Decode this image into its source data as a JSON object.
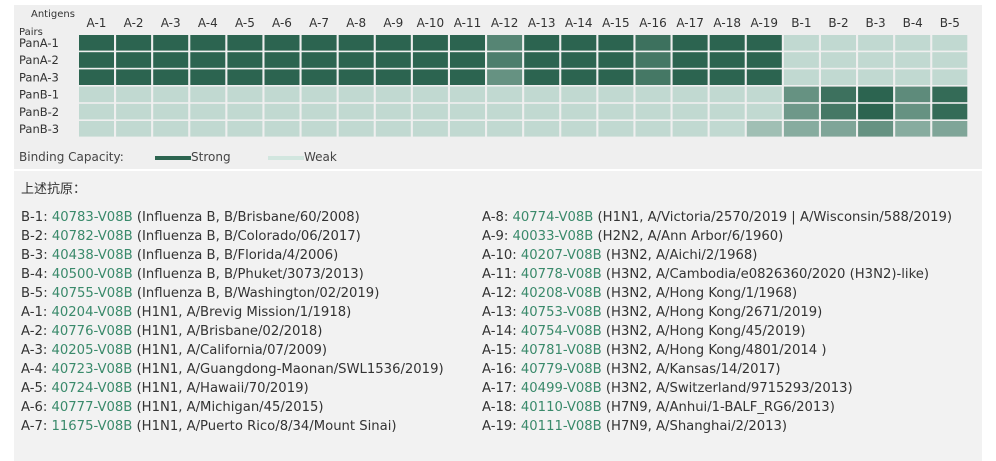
{
  "chart_data": {
    "type": "heatmap",
    "x_axis_label": "Antigens",
    "y_axis_label": "Pairs",
    "columns": [
      "A-1",
      "A-2",
      "A-3",
      "A-4",
      "A-5",
      "A-6",
      "A-7",
      "A-8",
      "A-9",
      "A-10",
      "A-11",
      "A-12",
      "A-13",
      "A-14",
      "A-15",
      "A-16",
      "A-17",
      "A-18",
      "A-19",
      "B-1",
      "B-2",
      "B-3",
      "B-4",
      "B-5"
    ],
    "rows": [
      "PanA-1",
      "PanA-2",
      "PanA-3",
      "PanB-1",
      "PanB-2",
      "PanB-3"
    ],
    "values": [
      [
        1,
        1,
        1,
        1,
        1,
        1,
        1,
        1,
        1,
        1,
        1,
        0.75,
        1,
        1,
        1,
        0.9,
        1,
        1,
        1,
        0.1,
        0.1,
        0.1,
        0.1,
        0.1
      ],
      [
        1,
        1,
        1,
        1,
        1,
        1,
        1,
        1,
        1,
        1,
        1,
        0.8,
        1,
        1,
        1,
        0.85,
        1,
        1,
        1,
        0.1,
        0.1,
        0.1,
        0.1,
        0.1
      ],
      [
        1,
        1,
        1,
        1,
        1,
        1,
        1,
        1,
        1,
        1,
        1,
        0.65,
        1,
        1,
        1,
        0.85,
        1,
        1,
        1,
        0.1,
        0.1,
        0.1,
        0.1,
        0.1
      ],
      [
        0.1,
        0.1,
        0.1,
        0.1,
        0.1,
        0.1,
        0.1,
        0.1,
        0.1,
        0.1,
        0.1,
        0.1,
        0.1,
        0.1,
        0.1,
        0.1,
        0.1,
        0.1,
        0.1,
        0.65,
        0.9,
        1,
        0.7,
        0.95
      ],
      [
        0.1,
        0.1,
        0.1,
        0.1,
        0.1,
        0.1,
        0.1,
        0.1,
        0.1,
        0.1,
        0.1,
        0.1,
        0.1,
        0.1,
        0.1,
        0.1,
        0.1,
        0.1,
        0.1,
        0.6,
        0.85,
        1,
        0.65,
        0.95
      ],
      [
        0.1,
        0.1,
        0.1,
        0.1,
        0.1,
        0.1,
        0.1,
        0.1,
        0.1,
        0.1,
        0.1,
        0.1,
        0.1,
        0.1,
        0.1,
        0.1,
        0.1,
        0.1,
        0.3,
        0.45,
        0.5,
        0.65,
        0.45,
        0.5
      ]
    ],
    "color_scale": {
      "low": "#d2e6df",
      "high": "#2c6450"
    },
    "legend": {
      "title": "Binding Capacity:",
      "items": [
        {
          "label": "Strong",
          "color": "#2c6450"
        },
        {
          "label": "Weak",
          "color": "#d2e6df"
        }
      ]
    }
  },
  "antigen_list": {
    "heading": "上述抗原：",
    "left": [
      {
        "id": "B-1:",
        "code": "40783-V08B",
        "desc": "(Influenza B, B/Brisbane/60/2008)"
      },
      {
        "id": "B-2:",
        "code": "40782-V08B",
        "desc": "(Influenza B, B/Colorado/06/2017)"
      },
      {
        "id": "B-3:",
        "code": "40438-V08B",
        "desc": "(Influenza B, B/Florida/4/2006)"
      },
      {
        "id": "B-4:",
        "code": "40500-V08B",
        "desc": "(Influenza B, B/Phuket/3073/2013)"
      },
      {
        "id": "B-5:",
        "code": "40755-V08B",
        "desc": "(Influenza B, B/Washington/02/2019)"
      },
      {
        "id": "A-1:",
        "code": "40204-V08B",
        "desc": "(H1N1, A/Brevig Mission/1/1918)"
      },
      {
        "id": "A-2:",
        "code": "40776-V08B",
        "desc": "(H1N1, A/Brisbane/02/2018)"
      },
      {
        "id": "A-3:",
        "code": "40205-V08B",
        "desc": "(H1N1, A/California/07/2009)"
      },
      {
        "id": "A-4:",
        "code": "40723-V08B",
        "desc": "(H1N1, A/Guangdong-Maonan/SWL1536/2019)"
      },
      {
        "id": "A-5:",
        "code": "40724-V08B",
        "desc": "(H1N1, A/Hawaii/70/2019)"
      },
      {
        "id": "A-6:",
        "code": "40777-V08B",
        "desc": "(H1N1, A/Michigan/45/2015)"
      },
      {
        "id": "A-7:",
        "code": "11675-V08B",
        "desc": "(H1N1, A/Puerto Rico/8/34/Mount Sinai)"
      }
    ],
    "right": [
      {
        "id": "A-8:",
        "code": "40774-V08B",
        "desc": "(H1N1, A/Victoria/2570/2019 | A/Wisconsin/588/2019)"
      },
      {
        "id": "A-9:",
        "code": "40033-V08B",
        "desc": "(H2N2, A/Ann Arbor/6/1960)"
      },
      {
        "id": "A-10:",
        "code": "40207-V08B",
        "desc": "(H3N2, A/Aichi/2/1968)"
      },
      {
        "id": "A-11:",
        "code": "40778-V08B",
        "desc": "(H3N2, A/Cambodia/e0826360/2020 (H3N2)-like)"
      },
      {
        "id": "A-12:",
        "code": "40208-V08B",
        "desc": "(H3N2, A/Hong Kong/1/1968)"
      },
      {
        "id": "A-13:",
        "code": "40753-V08B",
        "desc": "(H3N2, A/Hong Kong/2671/2019)"
      },
      {
        "id": "A-14:",
        "code": "40754-V08B",
        "desc": "(H3N2, A/Hong Kong/45/2019)"
      },
      {
        "id": "A-15:",
        "code": "40781-V08B",
        "desc": "(H3N2, A/Hong Kong/4801/2014 )"
      },
      {
        "id": "A-16:",
        "code": "40779-V08B",
        "desc": "(H3N2, A/Kansas/14/2017)"
      },
      {
        "id": "A-17:",
        "code": "40499-V08B",
        "desc": "(H3N2, A/Switzerland/9715293/2013)"
      },
      {
        "id": "A-18:",
        "code": "40110-V08B",
        "desc": "(H7N9, A/Anhui/1-BALF_RG6/2013)"
      },
      {
        "id": "A-19:",
        "code": "40111-V08B",
        "desc": "(H7N9, A/Shanghai/2/2013)"
      }
    ]
  }
}
